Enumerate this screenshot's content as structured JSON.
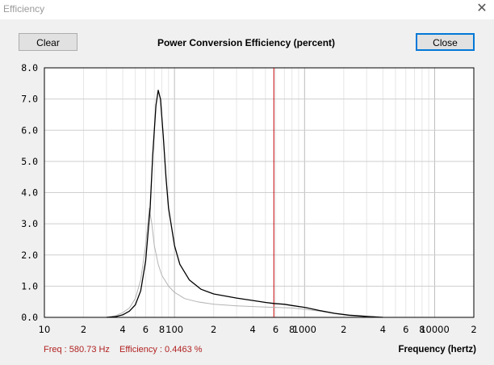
{
  "window": {
    "title": "Efficiency",
    "close_glyph": "✕"
  },
  "buttons": {
    "clear_label": "Clear",
    "close_label": "Close"
  },
  "readout": {
    "freq": "Freq : 580.73 Hz",
    "efficiency": "Efficiency : 0.4463 %"
  },
  "colors": {
    "cursor": "#c00000",
    "curve_primary": "#000000",
    "curve_secondary": "#b4b4b4",
    "readout": "#b22222"
  },
  "chart_data": {
    "type": "line",
    "title": "Power Conversion Efficiency (percent)",
    "xlabel": "Frequency (hertz)",
    "ylabel": "",
    "x_scale": "log",
    "xlim": [
      10,
      20000
    ],
    "ylim": [
      0,
      8
    ],
    "y_ticks": [
      "0.0",
      "1.0",
      "2.0",
      "3.0",
      "4.0",
      "5.0",
      "6.0",
      "7.0",
      "8.0"
    ],
    "x_ticks": [
      {
        "value": 10,
        "label": "10"
      },
      {
        "value": 20,
        "label": "2"
      },
      {
        "value": 40,
        "label": "4"
      },
      {
        "value": 60,
        "label": "6"
      },
      {
        "value": 80,
        "label": "8"
      },
      {
        "value": 100,
        "label": "100"
      },
      {
        "value": 200,
        "label": "2"
      },
      {
        "value": 400,
        "label": "4"
      },
      {
        "value": 600,
        "label": "6"
      },
      {
        "value": 800,
        "label": "8"
      },
      {
        "value": 1000,
        "label": "1000"
      },
      {
        "value": 2000,
        "label": "2"
      },
      {
        "value": 4000,
        "label": "4"
      },
      {
        "value": 6000,
        "label": "6"
      },
      {
        "value": 8000,
        "label": "8"
      },
      {
        "value": 10000,
        "label": "10000"
      },
      {
        "value": 20000,
        "label": "2"
      }
    ],
    "cursor_x": 580.73,
    "grid": true,
    "series": [
      {
        "points": [
          [
            30,
            0
          ],
          [
            35,
            0.02
          ],
          [
            40,
            0.08
          ],
          [
            45,
            0.2
          ],
          [
            50,
            0.4
          ],
          [
            55,
            0.85
          ],
          [
            60,
            1.8
          ],
          [
            65,
            3.5
          ],
          [
            68,
            5.2
          ],
          [
            72,
            6.8
          ],
          [
            75,
            7.28
          ],
          [
            78,
            7.0
          ],
          [
            82,
            5.8
          ],
          [
            86,
            4.5
          ],
          [
            90,
            3.5
          ],
          [
            100,
            2.3
          ],
          [
            110,
            1.7
          ],
          [
            130,
            1.2
          ],
          [
            160,
            0.9
          ],
          [
            200,
            0.75
          ],
          [
            300,
            0.62
          ],
          [
            400,
            0.54
          ],
          [
            500,
            0.48
          ],
          [
            580.73,
            0.4463
          ],
          [
            700,
            0.42
          ],
          [
            800,
            0.38
          ],
          [
            1000,
            0.32
          ],
          [
            1300,
            0.22
          ],
          [
            1700,
            0.13
          ],
          [
            2200,
            0.07
          ],
          [
            3000,
            0.03
          ],
          [
            4000,
            0
          ]
        ]
      },
      {
        "points": [
          [
            30,
            0
          ],
          [
            35,
            0.05
          ],
          [
            40,
            0.15
          ],
          [
            45,
            0.3
          ],
          [
            50,
            0.6
          ],
          [
            55,
            1.2
          ],
          [
            60,
            2.3
          ],
          [
            64,
            3.5
          ],
          [
            67,
            3.0
          ],
          [
            70,
            2.3
          ],
          [
            75,
            1.7
          ],
          [
            80,
            1.35
          ],
          [
            90,
            1.0
          ],
          [
            100,
            0.8
          ],
          [
            120,
            0.6
          ],
          [
            150,
            0.5
          ],
          [
            200,
            0.42
          ],
          [
            300,
            0.37
          ],
          [
            500,
            0.33
          ],
          [
            800,
            0.3
          ],
          [
            1000,
            0.26
          ],
          [
            1300,
            0.2
          ],
          [
            1700,
            0.12
          ],
          [
            2200,
            0.06
          ],
          [
            3000,
            0.02
          ],
          [
            4000,
            0
          ]
        ]
      }
    ]
  }
}
